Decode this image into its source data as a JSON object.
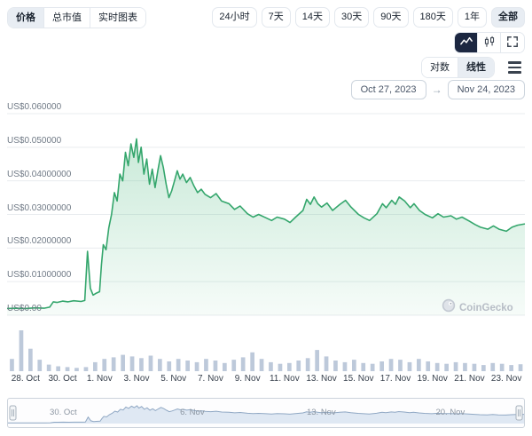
{
  "toolbar": {
    "tabs": [
      "价格",
      "总市值",
      "实时图表"
    ],
    "ranges": [
      "24小时",
      "7天",
      "14天",
      "30天",
      "90天",
      "180天",
      "1年",
      "全部"
    ],
    "scale": [
      "对数",
      "线性"
    ],
    "dates": {
      "from": "Oct 27, 2023",
      "to": "Nov 24, 2023",
      "arrow": "→"
    }
  },
  "watermark": {
    "label": "CoinGecko"
  },
  "chart_data": {
    "type": "area",
    "main": {
      "x_range": [
        0,
        28
      ],
      "y_range": [
        0,
        0.06
      ],
      "y_ticks": [
        0.06,
        0.05,
        0.04,
        0.03,
        0.02,
        0.01,
        0
      ],
      "y_tick_labels": [
        "US$0.060000",
        "US$0.050000",
        "US$0.04000000",
        "US$0.03000000",
        "US$0.02000000",
        "US$0.01000000",
        "US$0.00"
      ],
      "x_tick_days": [
        1,
        3,
        5,
        7,
        9,
        11,
        13,
        15,
        17,
        19,
        21,
        23,
        25,
        27
      ],
      "x_tick_labels": [
        "28. Oct",
        "30. Oct",
        "1. Nov",
        "3. Nov",
        "5. Nov",
        "7. Nov",
        "9. Nov",
        "11. Nov",
        "13. Nov",
        "15. Nov",
        "17. Nov",
        "19. Nov",
        "21. Nov",
        "23. Nov"
      ],
      "line_color": "#34a66c",
      "points": [
        [
          0,
          0.002
        ],
        [
          0.5,
          0.0021
        ],
        [
          1,
          0.002
        ],
        [
          1.5,
          0.0022
        ],
        [
          2,
          0.0021
        ],
        [
          2.3,
          0.0024
        ],
        [
          2.5,
          0.004
        ],
        [
          2.7,
          0.0038
        ],
        [
          3,
          0.0042
        ],
        [
          3.3,
          0.004
        ],
        [
          3.6,
          0.0043
        ],
        [
          4,
          0.0041
        ],
        [
          4.2,
          0.0044
        ],
        [
          4.35,
          0.019
        ],
        [
          4.5,
          0.008
        ],
        [
          4.65,
          0.006
        ],
        [
          4.8,
          0.0065
        ],
        [
          5,
          0.007
        ],
        [
          5.1,
          0.015
        ],
        [
          5.2,
          0.021
        ],
        [
          5.35,
          0.0195
        ],
        [
          5.5,
          0.026
        ],
        [
          5.65,
          0.03
        ],
        [
          5.8,
          0.0365
        ],
        [
          5.95,
          0.034
        ],
        [
          6.1,
          0.042
        ],
        [
          6.25,
          0.04
        ],
        [
          6.4,
          0.0485
        ],
        [
          6.55,
          0.0445
        ],
        [
          6.7,
          0.051
        ],
        [
          6.85,
          0.047
        ],
        [
          7,
          0.0525
        ],
        [
          7.1,
          0.0455
        ],
        [
          7.25,
          0.05
        ],
        [
          7.4,
          0.042
        ],
        [
          7.55,
          0.0465
        ],
        [
          7.7,
          0.039
        ],
        [
          7.85,
          0.0435
        ],
        [
          8,
          0.038
        ],
        [
          8.15,
          0.043
        ],
        [
          8.3,
          0.0475
        ],
        [
          8.45,
          0.044
        ],
        [
          8.6,
          0.039
        ],
        [
          8.75,
          0.035
        ],
        [
          8.9,
          0.037
        ],
        [
          9.05,
          0.04
        ],
        [
          9.2,
          0.043
        ],
        [
          9.35,
          0.0405
        ],
        [
          9.5,
          0.042
        ],
        [
          9.7,
          0.0395
        ],
        [
          9.9,
          0.041
        ],
        [
          10.1,
          0.0385
        ],
        [
          10.3,
          0.0365
        ],
        [
          10.5,
          0.0375
        ],
        [
          10.7,
          0.036
        ],
        [
          11,
          0.035
        ],
        [
          11.3,
          0.0362
        ],
        [
          11.6,
          0.034
        ],
        [
          12,
          0.0332
        ],
        [
          12.3,
          0.0315
        ],
        [
          12.6,
          0.0325
        ],
        [
          13,
          0.0302
        ],
        [
          13.3,
          0.0292
        ],
        [
          13.6,
          0.03
        ],
        [
          14,
          0.029
        ],
        [
          14.3,
          0.0282
        ],
        [
          14.6,
          0.0292
        ],
        [
          15,
          0.0286
        ],
        [
          15.3,
          0.0276
        ],
        [
          15.6,
          0.0292
        ],
        [
          16,
          0.0312
        ],
        [
          16.2,
          0.0345
        ],
        [
          16.4,
          0.033
        ],
        [
          16.6,
          0.0352
        ],
        [
          16.8,
          0.0332
        ],
        [
          17,
          0.0322
        ],
        [
          17.3,
          0.0334
        ],
        [
          17.6,
          0.0312
        ],
        [
          18,
          0.033
        ],
        [
          18.3,
          0.0342
        ],
        [
          18.6,
          0.0322
        ],
        [
          19,
          0.03
        ],
        [
          19.3,
          0.029
        ],
        [
          19.6,
          0.0282
        ],
        [
          20,
          0.0302
        ],
        [
          20.3,
          0.0332
        ],
        [
          20.5,
          0.032
        ],
        [
          20.8,
          0.0342
        ],
        [
          21,
          0.033
        ],
        [
          21.2,
          0.0352
        ],
        [
          21.5,
          0.034
        ],
        [
          21.8,
          0.032
        ],
        [
          22,
          0.0332
        ],
        [
          22.3,
          0.0312
        ],
        [
          22.6,
          0.03
        ],
        [
          23,
          0.029
        ],
        [
          23.3,
          0.0302
        ],
        [
          23.6,
          0.0292
        ],
        [
          24,
          0.0296
        ],
        [
          24.3,
          0.0286
        ],
        [
          24.6,
          0.0292
        ],
        [
          25,
          0.028
        ],
        [
          25.3,
          0.027
        ],
        [
          25.6,
          0.0262
        ],
        [
          26,
          0.0256
        ],
        [
          26.3,
          0.0266
        ],
        [
          26.6,
          0.0256
        ],
        [
          27,
          0.025
        ],
        [
          27.3,
          0.0262
        ],
        [
          27.6,
          0.0268
        ],
        [
          28,
          0.0272
        ]
      ]
    },
    "volume": {
      "color": "#bdc9da",
      "values": [
        0.3,
        1.0,
        0.55,
        0.28,
        0.16,
        0.12,
        0.1,
        0.08,
        0.1,
        0.22,
        0.3,
        0.34,
        0.4,
        0.36,
        0.32,
        0.38,
        0.3,
        0.24,
        0.3,
        0.26,
        0.22,
        0.3,
        0.26,
        0.2,
        0.28,
        0.34,
        0.46,
        0.3,
        0.22,
        0.18,
        0.2,
        0.26,
        0.32,
        0.52,
        0.36,
        0.26,
        0.22,
        0.28,
        0.2,
        0.18,
        0.24,
        0.3,
        0.28,
        0.22,
        0.3,
        0.24,
        0.2,
        0.18,
        0.22,
        0.2,
        0.18,
        0.15,
        0.2,
        0.18,
        0.15,
        0.17
      ]
    },
    "navigator": {
      "line_color": "#90a8c4",
      "fill_color": "#dfe8f3",
      "labels": [
        "30. Oct",
        "6. Nov",
        "13. Nov",
        "20. Nov"
      ],
      "label_days": [
        3,
        10,
        17,
        24
      ]
    }
  }
}
